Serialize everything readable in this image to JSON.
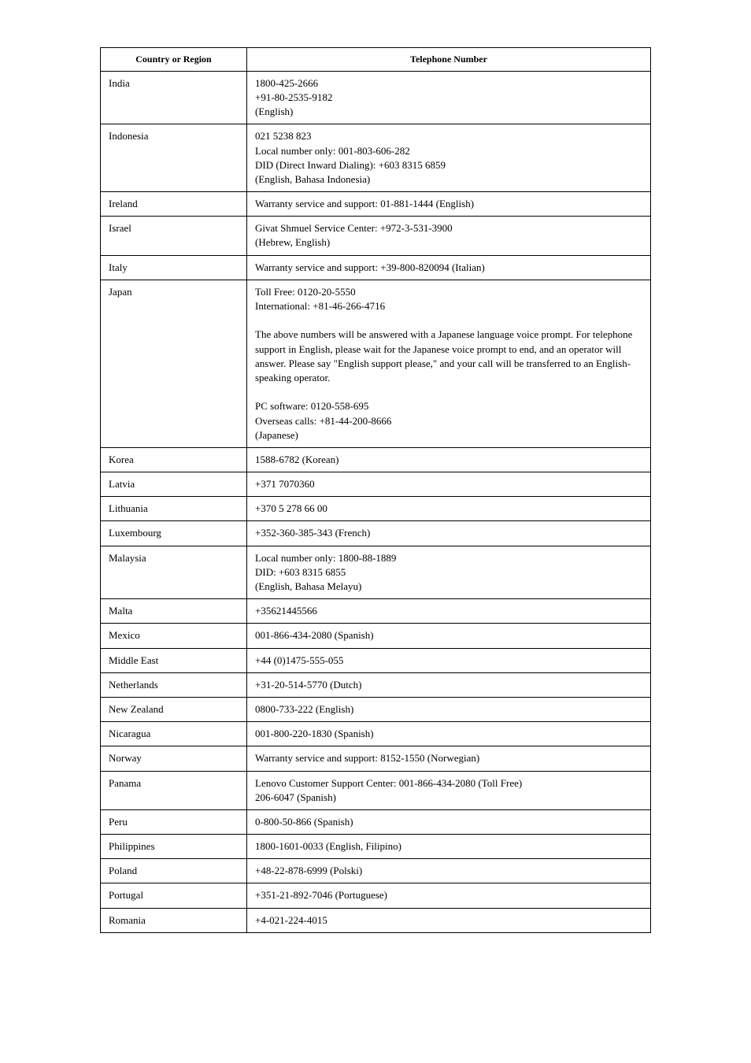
{
  "table": {
    "headers": {
      "country": "Country or Region",
      "phone": "Telephone Number"
    },
    "rows": [
      {
        "country": "India",
        "phone": "1800-425-2666\n+91-80-2535-9182\n(English)"
      },
      {
        "country": "Indonesia",
        "phone": "021 5238 823\nLocal number only: 001-803-606-282\nDID (Direct Inward Dialing): +603 8315 6859\n(English, Bahasa Indonesia)"
      },
      {
        "country": "Ireland",
        "phone": "Warranty service and support: 01-881-1444 (English)"
      },
      {
        "country": "Israel",
        "phone": "Givat Shmuel Service Center: +972-3-531-3900\n(Hebrew, English)"
      },
      {
        "country": "Italy",
        "phone": "Warranty service and support: +39-800-820094 (Italian)"
      },
      {
        "country": "Japan",
        "phone": "Toll Free: 0120-20-5550\nInternational: +81-46-266-4716\n\nThe above numbers will be answered with a Japanese language voice prompt. For telephone support in English, please wait for the Japanese voice prompt to end, and an operator will answer. Please say \"English support please,\" and your call will be transferred to an English-speaking operator.\n\nPC software: 0120-558-695\nOverseas calls: +81-44-200-8666\n(Japanese)"
      },
      {
        "country": "Korea",
        "phone": "1588-6782 (Korean)"
      },
      {
        "country": "Latvia",
        "phone": "+371 7070360"
      },
      {
        "country": "Lithuania",
        "phone": "+370 5 278 66 00"
      },
      {
        "country": "Luxembourg",
        "phone": "+352-360-385-343 (French)"
      },
      {
        "country": "Malaysia",
        "phone": "Local number only: 1800-88-1889\nDID: +603 8315 6855\n(English, Bahasa Melayu)"
      },
      {
        "country": "Malta",
        "phone": "+35621445566"
      },
      {
        "country": "Mexico",
        "phone": "001-866-434-2080 (Spanish)"
      },
      {
        "country": "Middle East",
        "phone": "+44 (0)1475-555-055"
      },
      {
        "country": "Netherlands",
        "phone": "+31-20-514-5770 (Dutch)"
      },
      {
        "country": "New Zealand",
        "phone": "0800-733-222 (English)"
      },
      {
        "country": "Nicaragua",
        "phone": "001-800-220-1830 (Spanish)"
      },
      {
        "country": "Norway",
        "phone": "Warranty service and support: 8152-1550 (Norwegian)"
      },
      {
        "country": "Panama",
        "phone": "Lenovo Customer Support Center: 001-866-434-2080 (Toll Free)\n206-6047 (Spanish)"
      },
      {
        "country": "Peru",
        "phone": "0-800-50-866 (Spanish)"
      },
      {
        "country": "Philippines",
        "phone": "1800-1601-0033 (English, Filipino)"
      },
      {
        "country": "Poland",
        "phone": "+48-22-878-6999 (Polski)"
      },
      {
        "country": "Portugal",
        "phone": "+351-21-892-7046 (Portuguese)"
      },
      {
        "country": "Romania",
        "phone": "+4-021-224-4015"
      }
    ]
  }
}
